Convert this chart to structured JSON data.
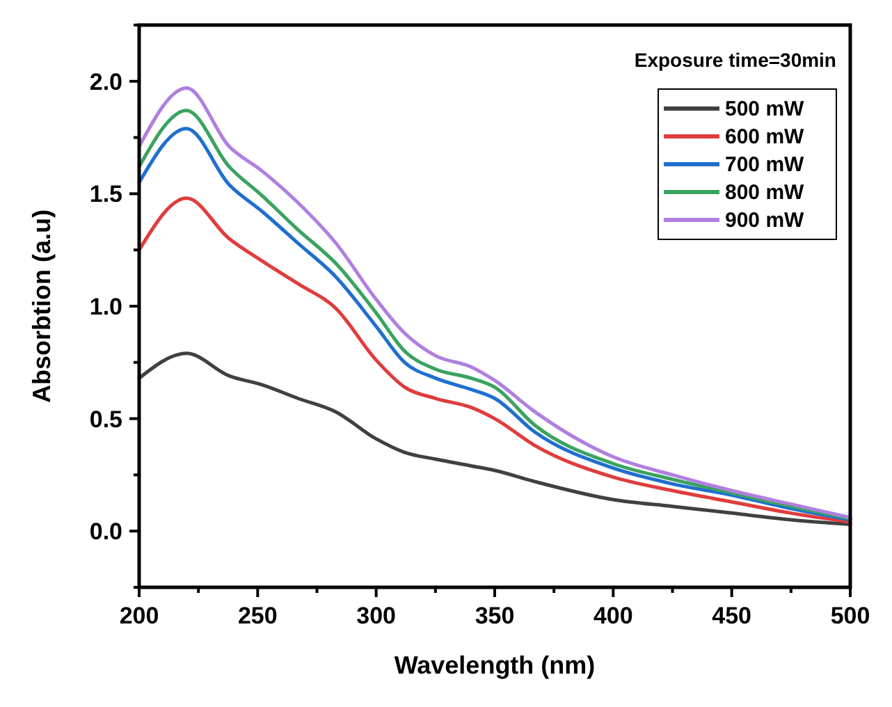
{
  "chart_data": {
    "type": "line",
    "xlabel": "Wavelength (nm)",
    "ylabel": "Absorbtion (a.u)",
    "legend_title": "Exposure time=30min",
    "legend": "top right",
    "grid": false,
    "line_style": "solid",
    "marker": "none",
    "x": [
      200,
      220,
      238,
      252,
      267,
      283,
      300,
      312,
      325,
      340,
      350,
      367,
      400,
      425,
      450,
      475,
      500
    ],
    "xlim": [
      200,
      500
    ],
    "ylim": [
      -0.25,
      2.25
    ],
    "xticks": [
      200,
      {
        "value": 225,
        "label": null
      },
      250,
      {
        "value": 275,
        "label": null
      },
      300,
      {
        "value": 325,
        "label": null
      },
      350,
      {
        "value": 375,
        "label": null
      },
      400,
      {
        "value": 425,
        "label": null
      },
      450,
      {
        "value": 475,
        "label": null
      },
      500
    ],
    "yticks": [
      {
        "value": -0.25,
        "label": null
      },
      {
        "value": 0,
        "label": "0.0"
      },
      {
        "value": 0.25,
        "label": null
      },
      {
        "value": 0.5,
        "label": "0.5"
      },
      {
        "value": 0.75,
        "label": null
      },
      {
        "value": 1,
        "label": "1.0"
      },
      {
        "value": 1.25,
        "label": null
      },
      {
        "value": 1.5,
        "label": "1.5"
      },
      {
        "value": 1.75,
        "label": null
      },
      {
        "value": 2,
        "label": "2.0"
      },
      {
        "value": 2.25,
        "label": null
      }
    ],
    "series": [
      {
        "name": "500 mW",
        "color": "#404040",
        "values": [
          0.68,
          0.79,
          0.69,
          0.65,
          0.59,
          0.53,
          0.41,
          0.35,
          0.32,
          0.29,
          0.27,
          0.22,
          0.14,
          0.11,
          0.08,
          0.05,
          0.03
        ]
      },
      {
        "name": "600 mW",
        "color": "#e03c3c",
        "values": [
          1.25,
          1.48,
          1.3,
          1.2,
          1.1,
          0.99,
          0.76,
          0.64,
          0.59,
          0.55,
          0.5,
          0.38,
          0.24,
          0.18,
          0.13,
          0.08,
          0.04
        ]
      },
      {
        "name": "700 mW",
        "color": "#1f6fd0",
        "values": [
          1.55,
          1.79,
          1.54,
          1.42,
          1.28,
          1.13,
          0.91,
          0.75,
          0.68,
          0.63,
          0.59,
          0.44,
          0.28,
          0.21,
          0.16,
          0.1,
          0.05
        ]
      },
      {
        "name": "800 mW",
        "color": "#3aa35f",
        "values": [
          1.62,
          1.87,
          1.62,
          1.49,
          1.34,
          1.19,
          0.97,
          0.8,
          0.72,
          0.68,
          0.64,
          0.47,
          0.3,
          0.23,
          0.17,
          0.11,
          0.055
        ]
      },
      {
        "name": "900 mW",
        "color": "#b07fe0",
        "values": [
          1.71,
          1.97,
          1.71,
          1.6,
          1.46,
          1.28,
          1.03,
          0.88,
          0.78,
          0.73,
          0.67,
          0.53,
          0.33,
          0.25,
          0.18,
          0.12,
          0.06
        ]
      }
    ]
  }
}
